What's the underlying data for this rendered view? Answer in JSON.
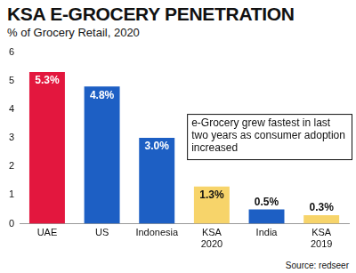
{
  "chart_data": {
    "type": "bar",
    "title": "KSA E-GROCERY PENETRATION",
    "subtitle": "% of Grocery Retail, 2020",
    "categories": [
      "UAE",
      "US",
      "Indonesia",
      "KSA 2020",
      "India",
      "KSA 2019"
    ],
    "values": [
      5.3,
      4.8,
      3.0,
      1.3,
      0.5,
      0.3
    ],
    "value_labels": [
      "5.3%",
      "4.8%",
      "3.0%",
      "1.3%",
      "0.5%",
      "0.3%"
    ],
    "colors": [
      "#e3173e",
      "#1d5fc4",
      "#1d5fc4",
      "#f7d46a",
      "#1d5fc4",
      "#f7d46a"
    ],
    "ylim": [
      0,
      6
    ],
    "yticks": [
      0,
      1,
      2,
      3,
      4,
      5,
      6
    ],
    "grid": false,
    "data_labels": true,
    "annotation": "e-Grocery grew fastest in last two years as consumer adoption increased",
    "source": "Source: redseer"
  }
}
